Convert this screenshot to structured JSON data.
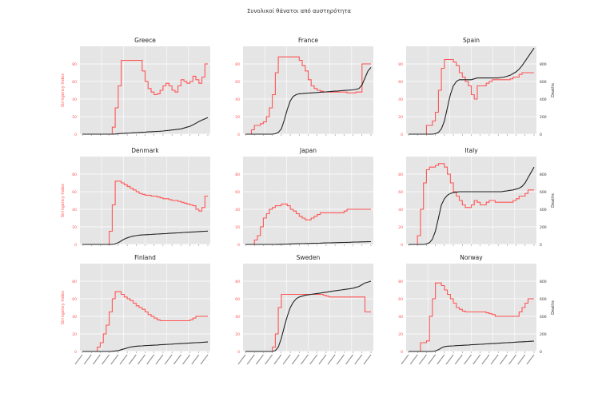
{
  "figure": {
    "suptitle": "Συνολικοί θάνατοι από αυστηρότητα",
    "left_axis_label": "Stringency Index",
    "right_axis_label": "Deaths"
  },
  "colors": {
    "stringency": "#ff5555",
    "deaths": "#222222",
    "panel_bg": "#e5e5e5",
    "grid": "#ffffff"
  },
  "chart_data": [
    {
      "type": "line",
      "title": "Greece",
      "ylim": [
        0,
        100
      ],
      "yticks": [
        "0",
        "20",
        "40",
        "60",
        "80"
      ],
      "ylim_right": [
        0,
        1000
      ],
      "series": [
        {
          "values": [
            0,
            0,
            0,
            0,
            0,
            0,
            0,
            0,
            0,
            0,
            8,
            30,
            55,
            84,
            84,
            84,
            84,
            84,
            84,
            84,
            72,
            60,
            52,
            48,
            45,
            46,
            50,
            55,
            58,
            55,
            50,
            48,
            55,
            62,
            60,
            58,
            60,
            66,
            62,
            58,
            65,
            80,
            80
          ]
        },
        {
          "values": [
            0,
            0,
            0,
            0,
            0,
            0,
            0,
            0,
            0,
            0,
            0,
            2,
            5,
            8,
            10,
            12,
            14,
            16,
            18,
            20,
            22,
            24,
            26,
            28,
            30,
            32,
            34,
            36,
            40,
            44,
            48,
            52,
            56,
            60,
            70,
            80,
            90,
            105,
            125,
            145,
            160,
            175,
            190
          ]
        }
      ]
    },
    {
      "type": "line",
      "title": "France",
      "ylim": [
        0,
        100
      ],
      "yticks": [
        "0",
        "20",
        "40",
        "60",
        "80"
      ],
      "ylim_right": [
        0,
        1000
      ],
      "series": [
        {
          "values": [
            0,
            0,
            5,
            10,
            10,
            12,
            14,
            20,
            30,
            45,
            70,
            88,
            88,
            88,
            88,
            88,
            88,
            88,
            84,
            78,
            72,
            62,
            55,
            52,
            50,
            49,
            48,
            48,
            48,
            48,
            48,
            48,
            48,
            48,
            47,
            47,
            47,
            48,
            48,
            80,
            80,
            80,
            80
          ]
        },
        {
          "values": [
            0,
            0,
            0,
            0,
            0,
            0,
            0,
            0,
            0,
            0,
            5,
            20,
            60,
            160,
            280,
            380,
            430,
            450,
            460,
            462,
            465,
            467,
            470,
            472,
            475,
            478,
            480,
            482,
            485,
            488,
            490,
            492,
            495,
            498,
            500,
            502,
            505,
            510,
            520,
            560,
            640,
            720,
            760
          ]
        }
      ]
    },
    {
      "type": "line",
      "title": "Spain",
      "ylim": [
        0,
        100
      ],
      "yticks": [
        "0",
        "20",
        "40",
        "60",
        "80"
      ],
      "ylim_right": [
        0,
        1000
      ],
      "yticks_right": [
        "0",
        "200",
        "400",
        "600",
        "800"
      ],
      "series": [
        {
          "values": [
            0,
            0,
            0,
            0,
            0,
            0,
            10,
            10,
            15,
            25,
            50,
            75,
            85,
            85,
            85,
            82,
            78,
            70,
            65,
            60,
            55,
            45,
            40,
            55,
            55,
            55,
            58,
            60,
            62,
            62,
            62,
            62,
            62,
            62,
            63,
            65,
            65,
            68,
            70,
            70,
            70,
            70,
            70
          ]
        },
        {
          "values": [
            0,
            0,
            0,
            0,
            0,
            0,
            0,
            0,
            0,
            5,
            20,
            60,
            150,
            300,
            450,
            550,
            600,
            620,
            620,
            620,
            620,
            620,
            630,
            640,
            640,
            640,
            640,
            640,
            640,
            640,
            640,
            645,
            650,
            660,
            670,
            690,
            710,
            740,
            780,
            830,
            880,
            930,
            980
          ]
        }
      ]
    },
    {
      "type": "line",
      "title": "Denmark",
      "ylim": [
        0,
        100
      ],
      "yticks": [
        "0",
        "20",
        "40",
        "60",
        "80"
      ],
      "ylim_right": [
        0,
        1000
      ],
      "series": [
        {
          "values": [
            0,
            0,
            0,
            0,
            0,
            0,
            0,
            0,
            0,
            15,
            45,
            72,
            72,
            70,
            68,
            66,
            64,
            62,
            60,
            58,
            57,
            56,
            56,
            55,
            55,
            54,
            53,
            52,
            52,
            51,
            50,
            50,
            49,
            48,
            47,
            46,
            45,
            44,
            40,
            38,
            42,
            55,
            55
          ]
        },
        {
          "values": [
            0,
            0,
            0,
            0,
            0,
            0,
            0,
            0,
            0,
            0,
            0,
            5,
            20,
            40,
            60,
            75,
            85,
            95,
            100,
            105,
            108,
            110,
            112,
            114,
            116,
            118,
            120,
            122,
            124,
            126,
            128,
            130,
            132,
            134,
            136,
            138,
            140,
            142,
            144,
            146,
            148,
            150,
            152
          ]
        }
      ]
    },
    {
      "type": "line",
      "title": "Japan",
      "ylim": [
        0,
        100
      ],
      "yticks": [
        "0",
        "20",
        "40",
        "60",
        "80"
      ],
      "ylim_right": [
        0,
        1000
      ],
      "series": [
        {
          "values": [
            0,
            0,
            0,
            5,
            10,
            20,
            30,
            35,
            40,
            42,
            44,
            44,
            46,
            46,
            44,
            40,
            38,
            35,
            32,
            30,
            28,
            28,
            30,
            32,
            34,
            36,
            36,
            36,
            36,
            36,
            36,
            36,
            36,
            38,
            40,
            40,
            40,
            40,
            40,
            40,
            40,
            40,
            40
          ]
        },
        {
          "values": [
            0,
            0,
            0,
            0,
            0,
            0,
            0,
            0,
            0,
            0,
            0,
            1,
            2,
            3,
            4,
            5,
            6,
            7,
            8,
            9,
            10,
            11,
            12,
            13,
            14,
            15,
            16,
            17,
            18,
            19,
            20,
            21,
            22,
            23,
            24,
            25,
            26,
            27,
            28,
            29,
            30,
            31,
            32
          ]
        }
      ]
    },
    {
      "type": "line",
      "title": "Italy",
      "ylim": [
        0,
        100
      ],
      "yticks": [
        "0",
        "20",
        "40",
        "60",
        "80"
      ],
      "ylim_right": [
        0,
        1000
      ],
      "yticks_right": [
        "0",
        "200",
        "400",
        "600",
        "800"
      ],
      "series": [
        {
          "values": [
            0,
            0,
            0,
            10,
            40,
            70,
            85,
            88,
            88,
            90,
            92,
            92,
            88,
            80,
            70,
            60,
            55,
            50,
            45,
            42,
            42,
            45,
            50,
            48,
            45,
            45,
            48,
            50,
            50,
            48,
            48,
            48,
            48,
            48,
            48,
            50,
            52,
            55,
            55,
            58,
            62,
            62,
            62
          ]
        },
        {
          "values": [
            0,
            0,
            0,
            0,
            0,
            0,
            5,
            20,
            60,
            150,
            300,
            450,
            520,
            560,
            580,
            590,
            595,
            600,
            600,
            600,
            600,
            600,
            600,
            600,
            600,
            600,
            600,
            600,
            600,
            600,
            600,
            600,
            605,
            610,
            615,
            620,
            630,
            640,
            660,
            700,
            760,
            820,
            880
          ]
        }
      ]
    },
    {
      "type": "line",
      "title": "Finland",
      "ylim": [
        0,
        100
      ],
      "yticks": [
        "0",
        "20",
        "40",
        "60",
        "80"
      ],
      "ylim_right": [
        0,
        1000
      ],
      "series": [
        {
          "values": [
            0,
            0,
            0,
            0,
            0,
            5,
            10,
            20,
            30,
            45,
            60,
            68,
            68,
            65,
            62,
            60,
            58,
            55,
            52,
            50,
            48,
            45,
            42,
            40,
            38,
            36,
            35,
            35,
            35,
            35,
            35,
            35,
            35,
            35,
            35,
            35,
            36,
            38,
            40,
            40,
            40,
            40,
            40
          ]
        },
        {
          "values": [
            0,
            0,
            0,
            0,
            0,
            0,
            0,
            0,
            0,
            0,
            2,
            5,
            10,
            20,
            30,
            40,
            50,
            55,
            60,
            62,
            64,
            66,
            68,
            70,
            72,
            74,
            76,
            78,
            80,
            82,
            84,
            86,
            88,
            90,
            92,
            94,
            96,
            98,
            100,
            102,
            104,
            106,
            108
          ]
        }
      ]
    },
    {
      "type": "line",
      "title": "Sweden",
      "ylim": [
        0,
        100
      ],
      "yticks": [
        "0",
        "20",
        "40",
        "60",
        "80"
      ],
      "ylim_right": [
        0,
        1000
      ],
      "series": [
        {
          "values": [
            0,
            0,
            0,
            0,
            0,
            0,
            0,
            0,
            0,
            5,
            20,
            50,
            65,
            65,
            65,
            65,
            65,
            65,
            65,
            65,
            65,
            65,
            65,
            65,
            65,
            65,
            64,
            63,
            62,
            62,
            62,
            62,
            62,
            62,
            62,
            62,
            62,
            62,
            62,
            62,
            45,
            45,
            45
          ]
        },
        {
          "values": [
            0,
            0,
            0,
            0,
            0,
            0,
            0,
            0,
            0,
            0,
            10,
            50,
            150,
            280,
            400,
            500,
            560,
            600,
            620,
            630,
            640,
            645,
            650,
            655,
            660,
            665,
            670,
            675,
            680,
            685,
            690,
            695,
            700,
            705,
            710,
            715,
            720,
            730,
            740,
            760,
            780,
            790,
            800
          ]
        }
      ]
    },
    {
      "type": "line",
      "title": "Norway",
      "ylim": [
        0,
        100
      ],
      "yticks": [
        "0",
        "20",
        "40",
        "60",
        "80"
      ],
      "ylim_right": [
        0,
        1000
      ],
      "yticks_right": [
        "0",
        "200",
        "400",
        "600",
        "800"
      ],
      "series": [
        {
          "values": [
            0,
            0,
            0,
            0,
            10,
            10,
            12,
            40,
            60,
            78,
            78,
            75,
            70,
            65,
            60,
            55,
            50,
            48,
            46,
            45,
            45,
            45,
            45,
            45,
            45,
            45,
            44,
            43,
            42,
            40,
            40,
            40,
            40,
            40,
            40,
            40,
            40,
            45,
            50,
            55,
            60,
            60,
            60
          ]
        },
        {
          "values": [
            0,
            0,
            0,
            0,
            0,
            0,
            0,
            0,
            0,
            5,
            20,
            40,
            55,
            60,
            62,
            64,
            66,
            68,
            70,
            72,
            74,
            76,
            78,
            80,
            82,
            84,
            86,
            88,
            90,
            92,
            94,
            96,
            98,
            100,
            102,
            104,
            106,
            108,
            110,
            112,
            114,
            116,
            118
          ]
        }
      ]
    }
  ]
}
